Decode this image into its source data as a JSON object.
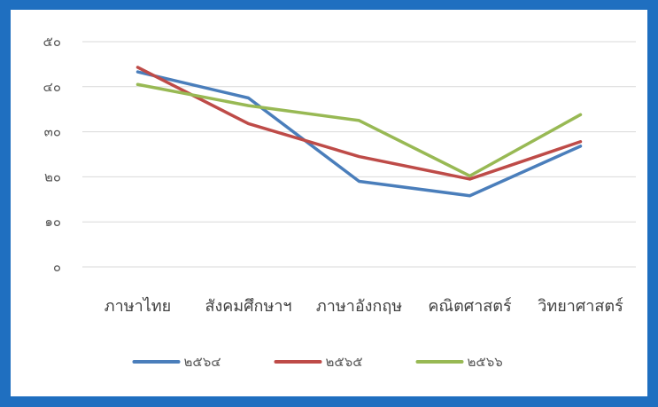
{
  "chart_data": {
    "type": "line",
    "title": "",
    "xlabel": "",
    "ylabel": "",
    "categories": [
      "ภาษาไทย",
      "สังคมศึกษาฯ",
      "ภาษาอังกฤษ",
      "คณิตศาสตร์",
      "วิทยาศาสตร์"
    ],
    "ylim": [
      0,
      50
    ],
    "yticks": [
      0,
      10,
      20,
      30,
      40,
      50
    ],
    "ytick_labels": [
      "๐",
      "๑๐",
      "๒๐",
      "๓๐",
      "๔๐",
      "๕๐"
    ],
    "grid": "horizontal",
    "legend_position": "bottom",
    "series": [
      {
        "name": "๒๕๖๔",
        "color": "#4a7ebb",
        "values": [
          43.3,
          37.5,
          19.0,
          15.8,
          26.8
        ]
      },
      {
        "name": "๒๕๖๕",
        "color": "#be4b48",
        "values": [
          44.3,
          31.8,
          24.5,
          19.5,
          27.8
        ]
      },
      {
        "name": "๒๕๖๖",
        "color": "#98b954",
        "values": [
          40.5,
          35.8,
          32.5,
          20.2,
          33.8
        ]
      }
    ]
  }
}
